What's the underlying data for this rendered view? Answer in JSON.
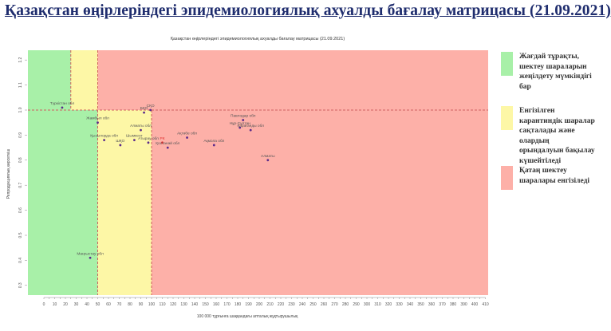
{
  "page_title": "Қазақстан өңірлеріндегі эпидемиологиялық ахуалды бағалау матрицасы  (21.09.2021)",
  "legend": [
    {
      "color": "#a8f0a8",
      "text": "Жағдай тұрақты, шектеу шараларын жеңілдету мүмкіндігі бар"
    },
    {
      "color": "#fdf7a6",
      "text": "Енгізілген карантиндік шаралар сақталады және олардың орындалуын бақылау күшейтіледі"
    },
    {
      "color": "#fdb0a8",
      "text": "Қатаң шектеу шаралары енгізіледі"
    }
  ],
  "chart_data": {
    "type": "scatter",
    "title": "Қазақстан өңірлеріндегі эпидемиологиялық ахуалды бағалау матрицасы  (21.09.2021)",
    "xlabel": "100 000 тұрғынға шаққандағы апталық жұқтырушылық",
    "ylabel": "Репродукциялық көрсеткіш",
    "xlim": [
      -15,
      412
    ],
    "ylim": [
      0.26,
      1.24
    ],
    "xticks": [
      0,
      10,
      20,
      30,
      40,
      50,
      60,
      70,
      80,
      90,
      100,
      110,
      120,
      130,
      140,
      150,
      160,
      170,
      180,
      190,
      200,
      210,
      220,
      230,
      240,
      250,
      260,
      270,
      280,
      290,
      300,
      310,
      320,
      330,
      340,
      350,
      360,
      370,
      380,
      390,
      400,
      410
    ],
    "yticks": [
      0.3,
      0.4,
      0.5,
      0.6,
      0.7,
      0.8,
      0.9,
      1.0,
      1.1,
      1.2
    ],
    "thresholds": {
      "x": [
        25,
        50,
        100
      ],
      "y": 1.0
    },
    "zone_colors": {
      "green": "#a8f0a8",
      "yellow": "#fdf7a6",
      "red": "#fdb0a8",
      "line": "#d06060"
    },
    "points": [
      {
        "label": "Түркістан обл",
        "x": 17,
        "y": 1.01
      },
      {
        "label": "СҚО",
        "x": 99,
        "y": 1.0
      },
      {
        "label": "БҚО",
        "x": 93,
        "y": 0.99
      },
      {
        "label": "Жамбыл обл",
        "x": 50,
        "y": 0.95
      },
      {
        "label": "Алматы обл",
        "x": 90,
        "y": 0.92
      },
      {
        "label": "Қызылорда обл",
        "x": 56,
        "y": 0.88
      },
      {
        "label": "Шымкент",
        "x": 84,
        "y": 0.88
      },
      {
        "label": "ШҚО",
        "x": 71,
        "y": 0.86
      },
      {
        "label": "Атырау обл",
        "x": 97,
        "y": 0.87
      },
      {
        "label": "РК",
        "x": 110,
        "y": 0.87,
        "color": "#e03030"
      },
      {
        "label": "Қостанай обл",
        "x": 115,
        "y": 0.85
      },
      {
        "label": "Ақтөбе обл",
        "x": 133,
        "y": 0.89
      },
      {
        "label": "Ақмола обл",
        "x": 158,
        "y": 0.86
      },
      {
        "label": "Павлодар обл",
        "x": 185,
        "y": 0.96
      },
      {
        "label": "Нұр-Сұлтан",
        "x": 182,
        "y": 0.93
      },
      {
        "label": "Қарағанды обл",
        "x": 192,
        "y": 0.92
      },
      {
        "label": "Алматы",
        "x": 208,
        "y": 0.8
      },
      {
        "label": "Маңғыстау обл",
        "x": 43,
        "y": 0.41
      }
    ]
  }
}
